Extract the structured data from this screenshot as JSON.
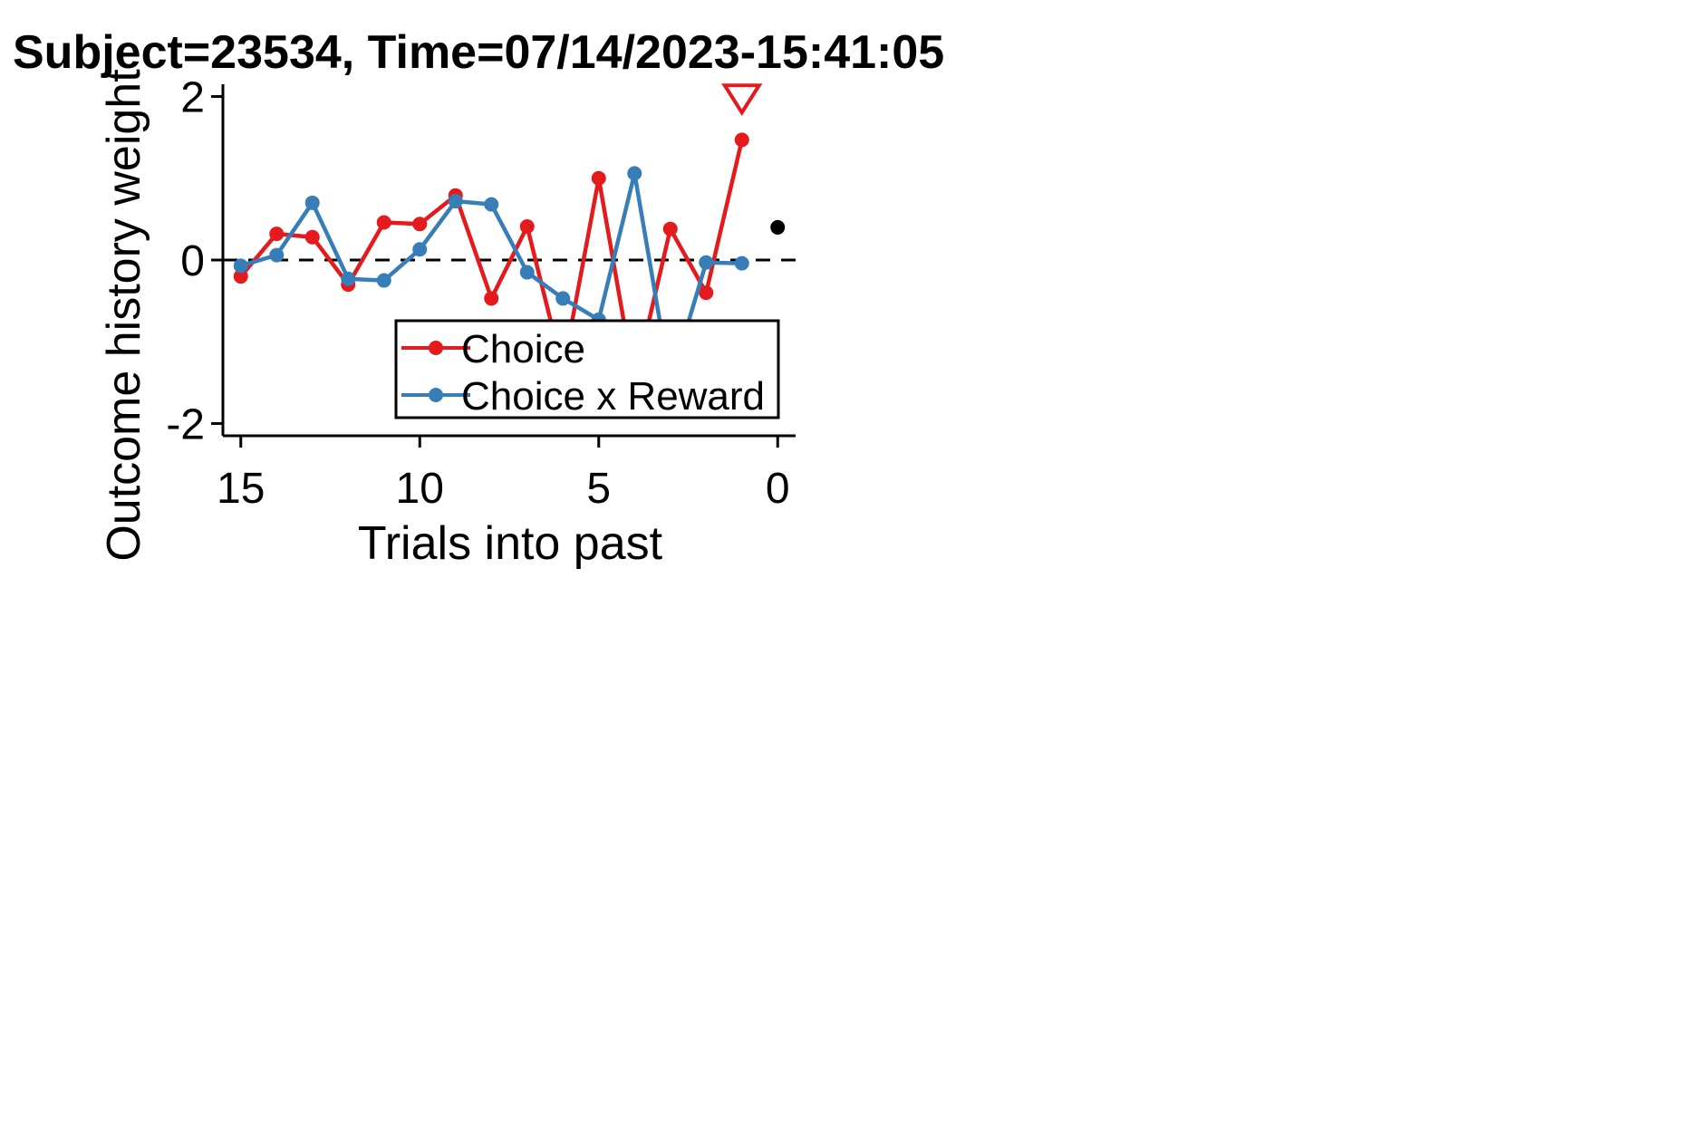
{
  "chart_data": {
    "type": "line",
    "title": "Subject=23534, Time=07/14/2023-15:41:05",
    "xlabel": "Trials into past",
    "ylabel": "Outcome history weight",
    "xlim": [
      15.5,
      -0.5
    ],
    "ylim": [
      -2.15,
      2.15
    ],
    "x_ticks": [
      15,
      10,
      5,
      0
    ],
    "x_tick_labels": [
      "15",
      "10",
      "5",
      "0"
    ],
    "y_ticks": [
      2,
      0,
      -2
    ],
    "y_tick_labels": [
      "2",
      "0",
      "-2"
    ],
    "grid": false,
    "legend_position": "lower-right",
    "zero_line": {
      "y": 0,
      "style": "dashed",
      "color": "#000000"
    },
    "series": [
      {
        "name": "Choice",
        "color": "#e41a1c",
        "x": [
          15,
          14,
          13,
          12,
          11,
          10,
          9,
          8,
          7,
          6,
          5,
          4,
          3,
          2,
          1
        ],
        "values": [
          -0.2,
          0.32,
          0.28,
          -0.3,
          0.46,
          0.44,
          0.79,
          -0.47,
          0.41,
          -1.35,
          1.0,
          -1.5,
          0.38,
          -0.4,
          1.47
        ]
      },
      {
        "name": "Choice x Reward",
        "color": "#377eb8",
        "x": [
          15,
          14,
          13,
          12,
          11,
          10,
          9,
          8,
          7,
          6,
          5,
          4,
          3,
          2,
          1
        ],
        "values": [
          -0.07,
          0.06,
          0.7,
          -0.23,
          -0.25,
          0.13,
          0.72,
          0.68,
          -0.15,
          -0.47,
          -0.73,
          1.06,
          -1.5,
          -0.03,
          -0.04
        ]
      }
    ],
    "bias_point": {
      "x": 0,
      "value": 0.4,
      "color": "#000000"
    },
    "marker_annotation": {
      "shape": "open-triangle-down",
      "x": 1,
      "value": 1.97,
      "color": "#e41a1c"
    }
  }
}
